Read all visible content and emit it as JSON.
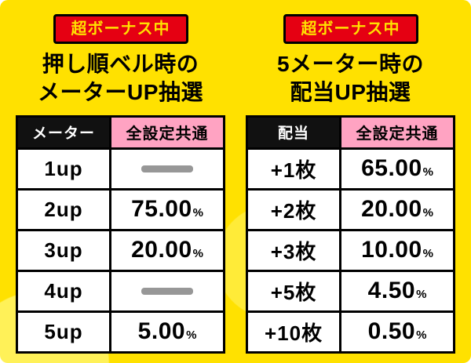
{
  "percent_sign": "%",
  "panels": [
    {
      "badge": "超ボーナス中",
      "title_line1": "押し順ベル時の",
      "title_line2": "メーターUP抽選",
      "header": {
        "col1": "メーター",
        "col2": "全設定共通"
      },
      "rows": [
        {
          "label": "1up",
          "value": "—",
          "dash": true
        },
        {
          "label": "2up",
          "value": "75.00",
          "dash": false
        },
        {
          "label": "3up",
          "value": "20.00",
          "dash": false
        },
        {
          "label": "4up",
          "value": "—",
          "dash": true
        },
        {
          "label": "5up",
          "value": "5.00",
          "dash": false
        }
      ]
    },
    {
      "badge": "超ボーナス中",
      "title_line1": "5メーター時の",
      "title_line2": "配当UP抽選",
      "header": {
        "col1": "配当",
        "col2": "全設定共通"
      },
      "rows": [
        {
          "label": "+1枚",
          "value": "65.00",
          "dash": false
        },
        {
          "label": "+2枚",
          "value": "20.00",
          "dash": false
        },
        {
          "label": "+3枚",
          "value": "10.00",
          "dash": false
        },
        {
          "label": "+5枚",
          "value": "4.50",
          "dash": false
        },
        {
          "label": "+10枚",
          "value": "0.50",
          "dash": false
        }
      ]
    }
  ],
  "colors": {
    "background_yellow": "#ffe100",
    "badge_red": "#e50012",
    "badge_text_yellow": "#ffe100",
    "header_black": "#111111",
    "header_pink": "#ffa3c2",
    "dash_gray": "#979797",
    "table_border": "#000000"
  },
  "chart_data": [
    {
      "type": "table",
      "title": "押し順ベル時のメーターUP抽選",
      "condition_badge": "超ボーナス中",
      "columns": [
        "メーター",
        "全設定共通"
      ],
      "rows": [
        [
          "1up",
          "—"
        ],
        [
          "2up",
          "75.00%"
        ],
        [
          "3up",
          "20.00%"
        ],
        [
          "4up",
          "—"
        ],
        [
          "5up",
          "5.00%"
        ]
      ]
    },
    {
      "type": "table",
      "title": "5メーター時の配当UP抽選",
      "condition_badge": "超ボーナス中",
      "columns": [
        "配当",
        "全設定共通"
      ],
      "rows": [
        [
          "+1枚",
          "65.00%"
        ],
        [
          "+2枚",
          "20.00%"
        ],
        [
          "+3枚",
          "10.00%"
        ],
        [
          "+5枚",
          "4.50%"
        ],
        [
          "+10枚",
          "0.50%"
        ]
      ]
    }
  ]
}
